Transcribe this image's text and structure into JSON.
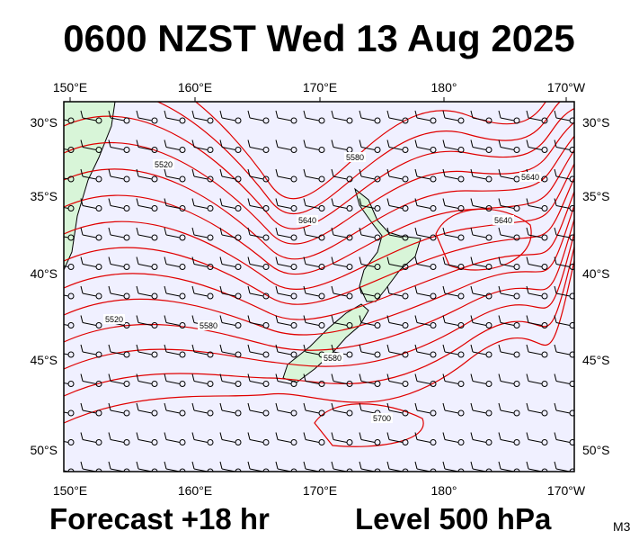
{
  "header": {
    "title": "0600 NZST Wed 13 Aug 2025"
  },
  "map": {
    "lon_labels": [
      "150°E",
      "160°E",
      "170°E",
      "180°",
      "170°W"
    ],
    "lat_labels": [
      "30°S",
      "35°S",
      "40°S",
      "45°S",
      "50°S"
    ],
    "contour_labels": [
      "5520",
      "5580",
      "5640",
      "5640",
      "5640",
      "5520",
      "5580",
      "5580",
      "5700"
    ]
  },
  "footer": {
    "forecast": "Forecast +18 hr",
    "level": "Level 500 hPa",
    "code": "M3"
  }
}
